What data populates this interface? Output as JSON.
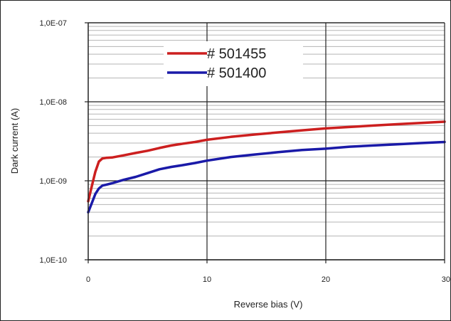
{
  "chart_data": {
    "type": "line",
    "title": "",
    "xlabel": "Reverse bias (V)",
    "ylabel": "Dark current  (A)",
    "xlim": [
      0,
      30
    ],
    "ylim": [
      1e-10,
      1e-07
    ],
    "y_scale": "log",
    "grid": true,
    "legend_position": "top-left",
    "x_ticks": [
      {
        "value": 0,
        "label": "0"
      },
      {
        "value": 10,
        "label": "10"
      },
      {
        "value": 20,
        "label": "20"
      },
      {
        "value": 30,
        "label": "30"
      }
    ],
    "y_ticks": [
      {
        "value": 1e-10,
        "label": "1,0E-10"
      },
      {
        "value": 1e-09,
        "label": "1,0E-09"
      },
      {
        "value": 1e-08,
        "label": "1,0E-08"
      },
      {
        "value": 1e-07,
        "label": "1,0E-07"
      }
    ],
    "series": [
      {
        "name": "# 501455",
        "color": "#cc1f1f",
        "points": [
          [
            0,
            5.5e-10
          ],
          [
            0.3,
            8.5e-10
          ],
          [
            0.6,
            1.3e-09
          ],
          [
            0.9,
            1.75e-09
          ],
          [
            1.2,
            1.92e-09
          ],
          [
            1.5,
            1.95e-09
          ],
          [
            2,
            1.97e-09
          ],
          [
            3,
            2.1e-09
          ],
          [
            4,
            2.25e-09
          ],
          [
            5,
            2.4e-09
          ],
          [
            6,
            2.6e-09
          ],
          [
            7,
            2.8e-09
          ],
          [
            8,
            2.95e-09
          ],
          [
            9,
            3.1e-09
          ],
          [
            10,
            3.3e-09
          ],
          [
            12,
            3.6e-09
          ],
          [
            14,
            3.85e-09
          ],
          [
            16,
            4.1e-09
          ],
          [
            18,
            4.35e-09
          ],
          [
            20,
            4.6e-09
          ],
          [
            22,
            4.8e-09
          ],
          [
            24,
            5e-09
          ],
          [
            26,
            5.2e-09
          ],
          [
            28,
            5.4e-09
          ],
          [
            30,
            5.6e-09
          ]
        ]
      },
      {
        "name": "# 501400",
        "color": "#1a1aa8",
        "points": [
          [
            0,
            4e-10
          ],
          [
            0.3,
            5.2e-10
          ],
          [
            0.6,
            6.8e-10
          ],
          [
            0.9,
            8e-10
          ],
          [
            1.2,
            8.7e-10
          ],
          [
            1.5,
            8.9e-10
          ],
          [
            2,
            9.3e-10
          ],
          [
            3,
            1.03e-09
          ],
          [
            4,
            1.12e-09
          ],
          [
            5,
            1.25e-09
          ],
          [
            6,
            1.4e-09
          ],
          [
            7,
            1.5e-09
          ],
          [
            8,
            1.58e-09
          ],
          [
            9,
            1.68e-09
          ],
          [
            10,
            1.8e-09
          ],
          [
            12,
            2e-09
          ],
          [
            14,
            2.15e-09
          ],
          [
            16,
            2.3e-09
          ],
          [
            18,
            2.45e-09
          ],
          [
            20,
            2.55e-09
          ],
          [
            22,
            2.7e-09
          ],
          [
            24,
            2.8e-09
          ],
          [
            26,
            2.9e-09
          ],
          [
            28,
            3e-09
          ],
          [
            30,
            3.1e-09
          ]
        ]
      }
    ]
  }
}
